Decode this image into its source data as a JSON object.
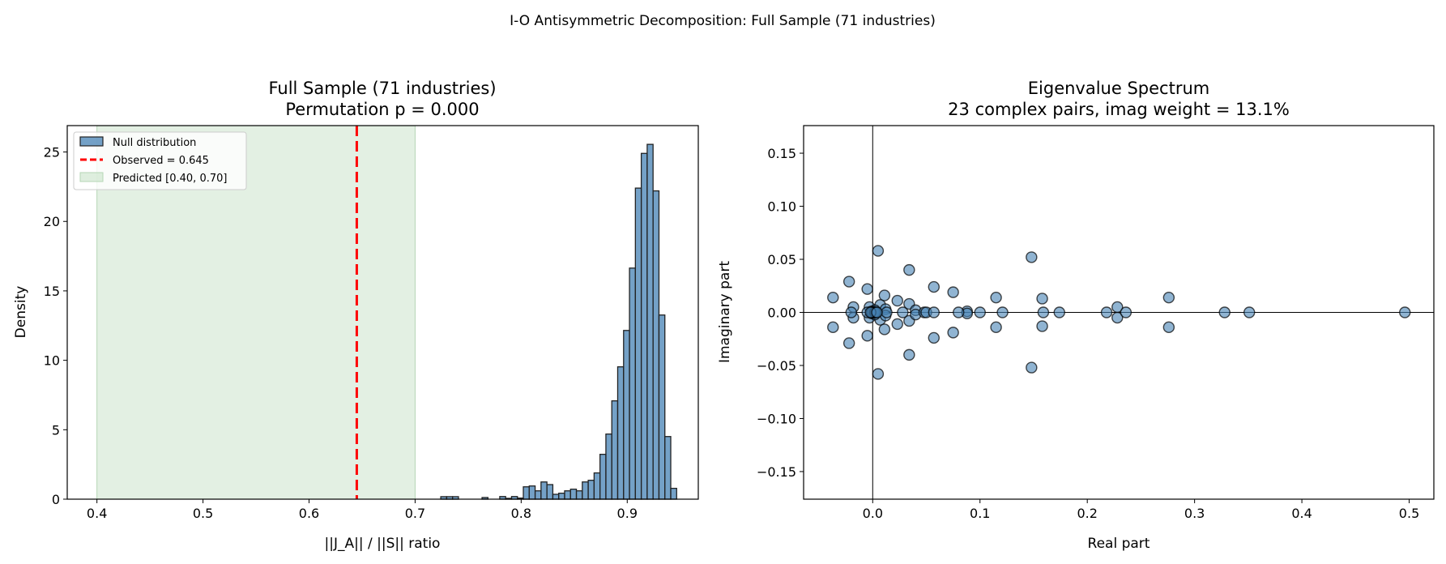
{
  "suptitle": "I-O Antisymmetric Decomposition: Full Sample (71 industries)",
  "chart_data": [
    {
      "type": "bar",
      "subtype": "histogram",
      "title_line1": "Full Sample (71 industries)",
      "title_line2": "Permutation p = 0.000",
      "xlabel": "||J_A|| / ||S|| ratio",
      "ylabel": "Density",
      "xlim": [
        0.372,
        0.967
      ],
      "ylim": [
        0,
        26.9
      ],
      "xticks": [
        0.4,
        0.5,
        0.6,
        0.7,
        0.8,
        0.9
      ],
      "xtick_labels": [
        "0.4",
        "0.5",
        "0.6",
        "0.7",
        "0.8",
        "0.9"
      ],
      "yticks": [
        0,
        5,
        10,
        15,
        20,
        25
      ],
      "ytick_labels": [
        "0",
        "5",
        "10",
        "15",
        "20",
        "25"
      ],
      "grid": false,
      "legend_position": "top-left",
      "bin_start": 0.7242,
      "bin_width": 0.00556,
      "densities": [
        0.18,
        0.18,
        0.18,
        0,
        0,
        0,
        0,
        0.12,
        0,
        0,
        0.19,
        0.06,
        0.19,
        0.08,
        0.89,
        0.95,
        0.6,
        1.24,
        1.05,
        0.35,
        0.43,
        0.6,
        0.72,
        0.6,
        1.24,
        1.36,
        1.89,
        3.23,
        4.69,
        7.08,
        9.53,
        12.15,
        16.64,
        22.4,
        24.9,
        25.55,
        22.2,
        13.26,
        4.51,
        0.78
      ],
      "observed": 0.645,
      "predicted_range": [
        0.4,
        0.7
      ],
      "legend": [
        "Null distribution",
        "Observed = 0.645",
        "Predicted [0.40, 0.70]"
      ],
      "colors": {
        "bars": "#4682b4",
        "observed": "#ff0000",
        "predicted": "#c8e2c8"
      }
    },
    {
      "type": "scatter",
      "title_line1": "Eigenvalue Spectrum",
      "title_line2": "23 complex pairs, imag weight = 13.1%",
      "xlabel": "Real part",
      "ylabel": "Imaginary part",
      "xlim": [
        -0.0644,
        0.523
      ],
      "ylim": [
        -0.176,
        0.176
      ],
      "xticks": [
        0.0,
        0.1,
        0.2,
        0.3,
        0.4,
        0.5
      ],
      "xtick_labels": [
        "0.0",
        "0.1",
        "0.2",
        "0.3",
        "0.4",
        "0.5"
      ],
      "yticks": [
        0.15,
        0.1,
        0.05,
        0.0,
        -0.05,
        -0.1,
        -0.15
      ],
      "ytick_labels": [
        "0.15",
        "0.10",
        "0.05",
        "0.00",
        "−0.05",
        "−0.10",
        "−0.15"
      ],
      "grid": false,
      "complex_pairs": [
        [
          -0.037,
          0.014
        ],
        [
          -0.022,
          0.029
        ],
        [
          -0.018,
          0.005
        ],
        [
          -0.005,
          0.022
        ],
        [
          -0.003,
          0.005
        ],
        [
          0.005,
          0.058
        ],
        [
          0.007,
          0.007
        ],
        [
          0.011,
          0.016
        ],
        [
          0.023,
          0.011
        ],
        [
          0.034,
          0.04
        ],
        [
          0.034,
          0.008
        ],
        [
          0.04,
          0.002
        ],
        [
          0.057,
          0.024
        ],
        [
          0.075,
          0.019
        ],
        [
          0.088,
          0.001
        ],
        [
          0.115,
          0.014
        ],
        [
          0.148,
          0.052
        ],
        [
          0.158,
          0.013
        ],
        [
          0.228,
          0.005
        ],
        [
          0.276,
          0.014
        ],
        [
          0.002,
          0.002
        ],
        [
          0.012,
          0.003
        ],
        [
          -0.001,
          0.001
        ]
      ],
      "real_eigenvalues": [
        -0.02,
        -0.005,
        0.013,
        0.028,
        0.048,
        0.05,
        0.057,
        0.08,
        0.1,
        0.121,
        0.159,
        0.174,
        0.218,
        0.236,
        0.328,
        0.351,
        0.496,
        0,
        0,
        0.001,
        -0.001,
        0.002,
        0.003,
        -0.002,
        0.004
      ],
      "colors": {
        "points": "#4682b4"
      }
    }
  ]
}
